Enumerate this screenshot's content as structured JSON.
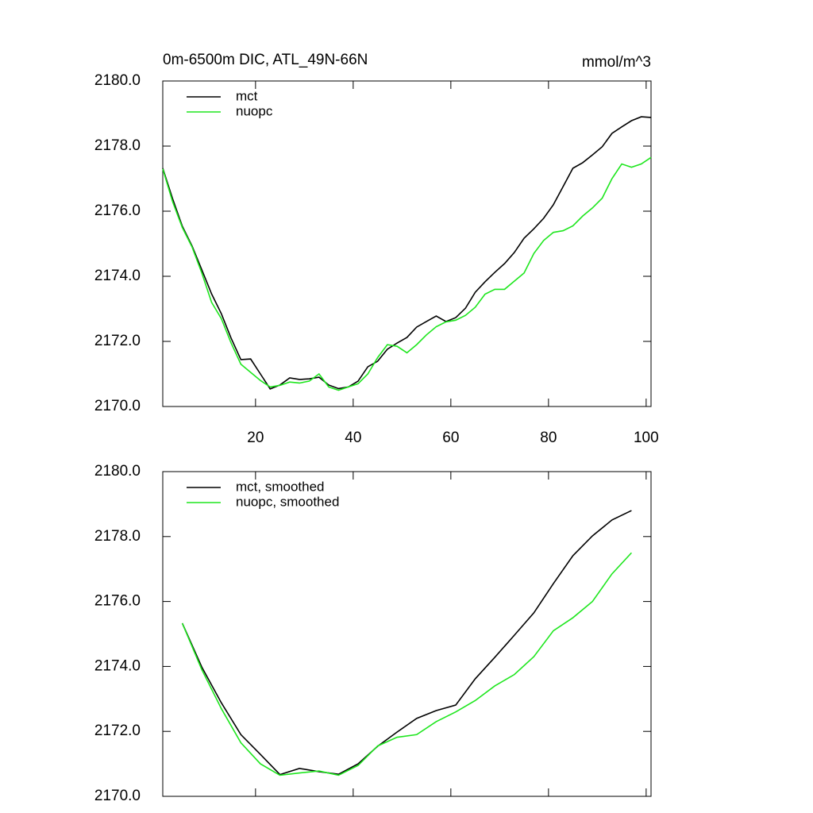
{
  "chart_data": [
    {
      "type": "line",
      "title": "0m-6500m DIC, ATL_49N-66N",
      "units": "mmol/m^3",
      "x": [
        1,
        3,
        5,
        7,
        9,
        11,
        13,
        15,
        17,
        19,
        21,
        23,
        25,
        27,
        29,
        31,
        33,
        35,
        37,
        39,
        41,
        43,
        45,
        47,
        49,
        51,
        53,
        55,
        57,
        59,
        61,
        63,
        65,
        67,
        69,
        71,
        73,
        75,
        77,
        79,
        81,
        83,
        85,
        87,
        89,
        91,
        93,
        95,
        97,
        99,
        101
      ],
      "series": [
        {
          "name": "mct",
          "color": "#000000",
          "values": [
            2177.32,
            2176.39,
            2175.54,
            2174.93,
            2174.2,
            2173.46,
            2172.85,
            2172.1,
            2171.44,
            2171.46,
            2171.0,
            2170.54,
            2170.66,
            2170.88,
            2170.83,
            2170.85,
            2170.9,
            2170.66,
            2170.55,
            2170.6,
            2170.78,
            2171.22,
            2171.39,
            2171.76,
            2171.95,
            2172.12,
            2172.44,
            2172.61,
            2172.78,
            2172.61,
            2172.73,
            2173.02,
            2173.51,
            2173.83,
            2174.12,
            2174.39,
            2174.73,
            2175.17,
            2175.46,
            2175.78,
            2176.2,
            2176.76,
            2177.32,
            2177.49,
            2177.73,
            2177.98,
            2178.39,
            2178.59,
            2178.78,
            2178.9,
            2178.88
          ]
        },
        {
          "name": "nuopc",
          "color": "#1ee61e",
          "values": [
            2177.3,
            2176.3,
            2175.5,
            2174.9,
            2174.1,
            2173.2,
            2172.7,
            2171.95,
            2171.3,
            2171.05,
            2170.8,
            2170.6,
            2170.65,
            2170.75,
            2170.72,
            2170.78,
            2171.0,
            2170.6,
            2170.5,
            2170.6,
            2170.7,
            2171.0,
            2171.5,
            2171.9,
            2171.85,
            2171.65,
            2171.9,
            2172.2,
            2172.45,
            2172.6,
            2172.65,
            2172.8,
            2173.05,
            2173.45,
            2173.6,
            2173.6,
            2173.85,
            2174.1,
            2174.7,
            2175.1,
            2175.35,
            2175.4,
            2175.55,
            2175.85,
            2176.1,
            2176.4,
            2177.0,
            2177.45,
            2177.35,
            2177.45,
            2177.65
          ]
        }
      ],
      "xlim": [
        1,
        101
      ],
      "xticks": [
        20,
        40,
        60,
        80,
        100
      ],
      "ylim": [
        2170,
        2180
      ],
      "yticks": [
        {
          "value": 2170,
          "label": "2170.0"
        },
        {
          "value": 2172,
          "label": "2172.0"
        },
        {
          "value": 2174,
          "label": "2174.0"
        },
        {
          "value": 2176,
          "label": "2176.0"
        },
        {
          "value": 2178,
          "label": "2178.0"
        },
        {
          "value": 2180,
          "label": "2180.0"
        }
      ],
      "legend": "top-left"
    },
    {
      "type": "line",
      "x": [
        5,
        9,
        13,
        17,
        21,
        25,
        29,
        33,
        37,
        41,
        45,
        49,
        53,
        57,
        61,
        65,
        69,
        73,
        77,
        81,
        85,
        89,
        93,
        97
      ],
      "series": [
        {
          "name": "mct, smoothed",
          "color": "#000000",
          "values": [
            2175.33,
            2173.98,
            2172.88,
            2171.9,
            2171.29,
            2170.67,
            2170.86,
            2170.76,
            2170.68,
            2171.0,
            2171.54,
            2171.98,
            2172.4,
            2172.64,
            2172.81,
            2173.62,
            2174.28,
            2174.96,
            2175.65,
            2176.55,
            2177.41,
            2178.02,
            2178.51,
            2178.8
          ]
        },
        {
          "name": "nuopc, smoothed",
          "color": "#1ee61e",
          "values": [
            2175.33,
            2173.9,
            2172.7,
            2171.65,
            2171.0,
            2170.65,
            2170.72,
            2170.78,
            2170.65,
            2170.95,
            2171.55,
            2171.82,
            2171.9,
            2172.3,
            2172.6,
            2172.95,
            2173.4,
            2173.75,
            2174.3,
            2175.1,
            2175.5,
            2176.0,
            2176.85,
            2177.5
          ]
        }
      ],
      "xlim": [
        1,
        101
      ],
      "ylim": [
        2170,
        2180
      ],
      "yticks": [
        {
          "value": 2170,
          "label": "2170.0"
        },
        {
          "value": 2172,
          "label": "2172.0"
        },
        {
          "value": 2174,
          "label": "2174.0"
        },
        {
          "value": 2176,
          "label": "2176.0"
        },
        {
          "value": 2178,
          "label": "2178.0"
        },
        {
          "value": 2180,
          "label": "2180.0"
        }
      ],
      "legend": "top-left"
    }
  ]
}
